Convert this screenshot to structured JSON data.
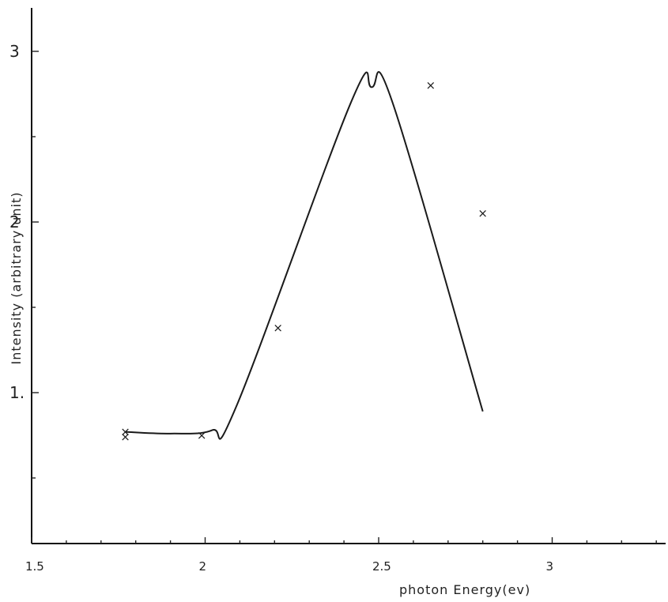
{
  "chart_data": {
    "type": "scatter",
    "xlabel": "photon  Energy(ev)",
    "ylabel": "Intensity (arbitrary unit)",
    "xlim": [
      1.5,
      3.35
    ],
    "ylim": [
      0,
      3.25
    ],
    "x_ticks": [
      1.5,
      2,
      2.5,
      3
    ],
    "x_tick_labels": [
      "1.5",
      "2",
      "2.5",
      "3"
    ],
    "y_ticks": [
      1,
      2,
      3
    ],
    "y_tick_labels": [
      "1.",
      "2",
      "3"
    ],
    "series": [
      {
        "type": "scatter",
        "marker": "x",
        "points": [
          {
            "x": 1.77,
            "y": 0.77
          },
          {
            "x": 1.77,
            "y": 0.74
          },
          {
            "x": 1.99,
            "y": 0.75
          },
          {
            "x": 2.21,
            "y": 1.38
          },
          {
            "x": 2.65,
            "y": 2.8
          },
          {
            "x": 2.8,
            "y": 2.05
          }
        ]
      },
      {
        "type": "line",
        "points": [
          {
            "x": 1.77,
            "y": 0.77
          },
          {
            "x": 1.9,
            "y": 0.76
          },
          {
            "x": 2.02,
            "y": 0.78
          },
          {
            "x": 2.09,
            "y": 0.92
          },
          {
            "x": 2.42,
            "y": 2.7
          },
          {
            "x": 2.48,
            "y": 2.79
          },
          {
            "x": 2.54,
            "y": 2.7
          },
          {
            "x": 2.8,
            "y": 0.89
          }
        ]
      }
    ]
  }
}
